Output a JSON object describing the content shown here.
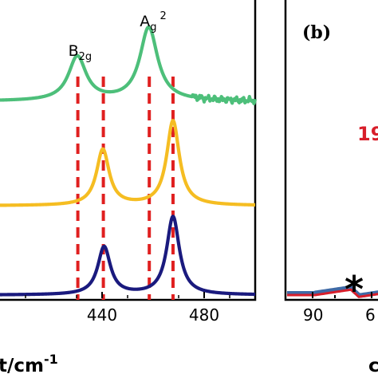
{
  "colors": {
    "green": "#4dbf7a",
    "yellow": "#f5bd22",
    "navy": "#1a1a7e",
    "red_dash": "#e02020",
    "red_b": "#d81e2a",
    "blue_b": "#3f6aa6"
  },
  "chart_data": [
    {
      "panel": "a",
      "type": "line",
      "xlim": [
        400,
        500
      ],
      "xticks": [
        440,
        480
      ],
      "xlabel_fragment": "t/cm",
      "xlabel_sup": "-1",
      "grid": false,
      "peak_labels": [
        {
          "main": "B",
          "sub": "2g",
          "sup": "",
          "x": 430.5
        },
        {
          "main": "A",
          "sub": "g",
          "sup": "2",
          "x": 458.5
        }
      ],
      "reference_lines_x": [
        430.5,
        440.5,
        458.5,
        467.8
      ],
      "series": [
        {
          "color_key": "green",
          "baseline": 0.0,
          "peaks": [
            {
              "x": 430.3,
              "h": 1.38,
              "w": 4.2
            },
            {
              "x": 458.3,
              "h": 2.3,
              "w": 4.2
            }
          ],
          "noise": true
        },
        {
          "color_key": "yellow",
          "baseline": 0.0,
          "peaks": [
            {
              "x": 440.3,
              "h": 1.75,
              "w": 3.0
            },
            {
              "x": 467.8,
              "h": 2.65,
              "w": 3.0
            }
          ],
          "noise": false
        },
        {
          "color_key": "navy",
          "baseline": 0.0,
          "peaks": [
            {
              "x": 440.8,
              "h": 1.5,
              "w": 3.0
            },
            {
              "x": 467.8,
              "h": 2.45,
              "w": 3.0
            }
          ],
          "noise": false
        }
      ]
    },
    {
      "panel": "b",
      "type": "line",
      "panel_label": "(b)",
      "xticks": [
        90,
        6
      ],
      "xlabel_fragment": "c",
      "annotation_partial": "19",
      "marker": "*",
      "series": [
        {
          "color_key": "blue_b"
        },
        {
          "color_key": "red_b"
        }
      ]
    }
  ]
}
